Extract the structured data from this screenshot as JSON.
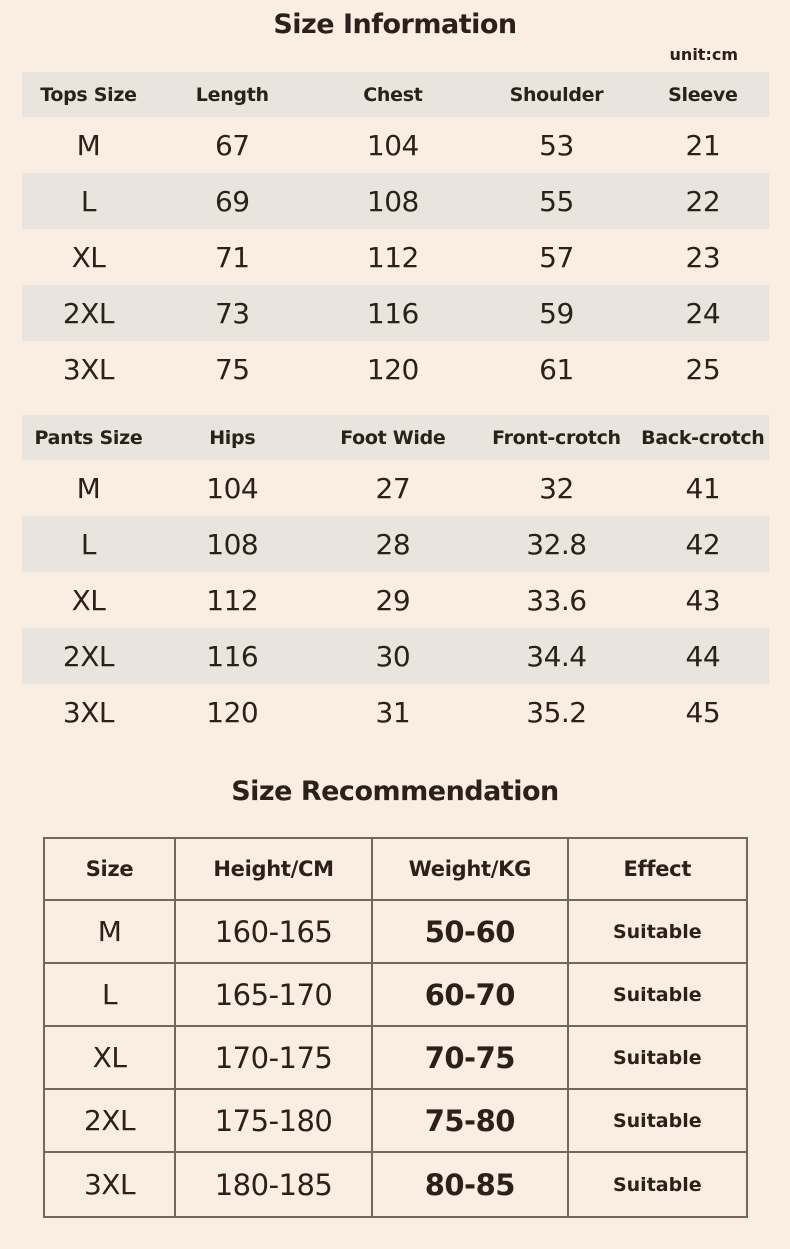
{
  "header": {
    "title": "Size Information",
    "unit_label": "unit:cm"
  },
  "recommendation": {
    "title": "Size Recommendation"
  },
  "tops_table": {
    "headers": [
      "Tops Size",
      "Length",
      "Chest",
      "Shoulder",
      "Sleeve"
    ],
    "rows": [
      [
        "M",
        "67",
        "104",
        "53",
        "21"
      ],
      [
        "L",
        "69",
        "108",
        "55",
        "22"
      ],
      [
        "XL",
        "71",
        "112",
        "57",
        "23"
      ],
      [
        "2XL",
        "73",
        "116",
        "59",
        "24"
      ],
      [
        "3XL",
        "75",
        "120",
        "61",
        "25"
      ]
    ]
  },
  "pants_table": {
    "headers": [
      "Pants Size",
      "Hips",
      "Foot Wide",
      "Front-crotch",
      "Back-crotch"
    ],
    "rows": [
      [
        "M",
        "104",
        "27",
        "32",
        "41"
      ],
      [
        "L",
        "108",
        "28",
        "32.8",
        "42"
      ],
      [
        "XL",
        "112",
        "29",
        "33.6",
        "43"
      ],
      [
        "2XL",
        "116",
        "30",
        "34.4",
        "44"
      ],
      [
        "3XL",
        "120",
        "31",
        "35.2",
        "45"
      ]
    ]
  },
  "recommendation_table": {
    "headers": [
      "Size",
      "Height/CM",
      "Weight/KG",
      "Effect"
    ],
    "rows": [
      [
        "M",
        "160-165",
        "50-60",
        "Suitable"
      ],
      [
        "L",
        "165-170",
        "60-70",
        "Suitable"
      ],
      [
        "XL",
        "170-175",
        "70-75",
        "Suitable"
      ],
      [
        "2XL",
        "175-180",
        "75-80",
        "Suitable"
      ],
      [
        "3XL",
        "180-185",
        "80-85",
        "Suitable"
      ]
    ]
  },
  "colors": {
    "background": "#faeee2",
    "band": "#e9e5de",
    "text": "#2a221a",
    "border": "#6e695f"
  }
}
